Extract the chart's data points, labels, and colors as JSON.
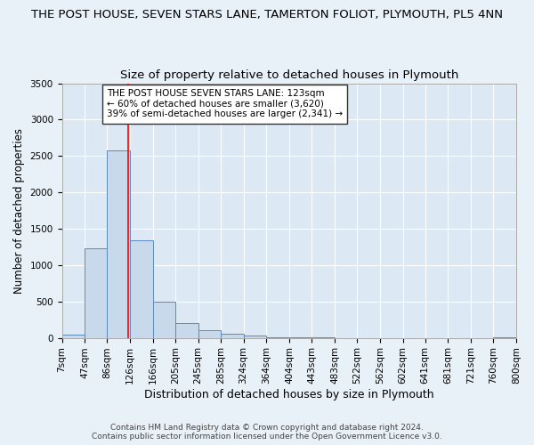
{
  "title": "THE POST HOUSE, SEVEN STARS LANE, TAMERTON FOLIOT, PLYMOUTH, PL5 4NN",
  "subtitle": "Size of property relative to detached houses in Plymouth",
  "xlabel": "Distribution of detached houses by size in Plymouth",
  "ylabel": "Number of detached properties",
  "bar_color": "#c9d9ec",
  "bar_edge_color": "#5b8abf",
  "background_color": "#e8f0f8",
  "plot_bg_color": "#dce9f5",
  "grid_color": "#ffffff",
  "vline_x": 123,
  "vline_color": "red",
  "annotation_line1": "THE POST HOUSE SEVEN STARS LANE: 123sqm",
  "annotation_line2": "← 60% of detached houses are smaller (3,620)",
  "annotation_line3": "39% of semi-detached houses are larger (2,341) →",
  "annotation_box_color": "#ffffff",
  "annotation_box_edge": "#333333",
  "footer1": "Contains HM Land Registry data © Crown copyright and database right 2024.",
  "footer2": "Contains public sector information licensed under the Open Government Licence v3.0.",
  "bins": [
    7,
    47,
    86,
    126,
    166,
    205,
    245,
    285,
    324,
    364,
    404,
    443,
    483,
    522,
    562,
    602,
    641,
    681,
    721,
    760,
    800
  ],
  "counts": [
    50,
    1230,
    2580,
    1340,
    500,
    200,
    110,
    60,
    30,
    8,
    3,
    2,
    1,
    0,
    0,
    0,
    0,
    0,
    0,
    5
  ],
  "xlim": [
    7,
    800
  ],
  "ylim": [
    0,
    3500
  ],
  "yticks": [
    0,
    500,
    1000,
    1500,
    2000,
    2500,
    3000,
    3500
  ],
  "title_fontsize": 9.5,
  "subtitle_fontsize": 9.5,
  "xlabel_fontsize": 9,
  "ylabel_fontsize": 8.5,
  "tick_fontsize": 7.5,
  "footer_fontsize": 6.5
}
